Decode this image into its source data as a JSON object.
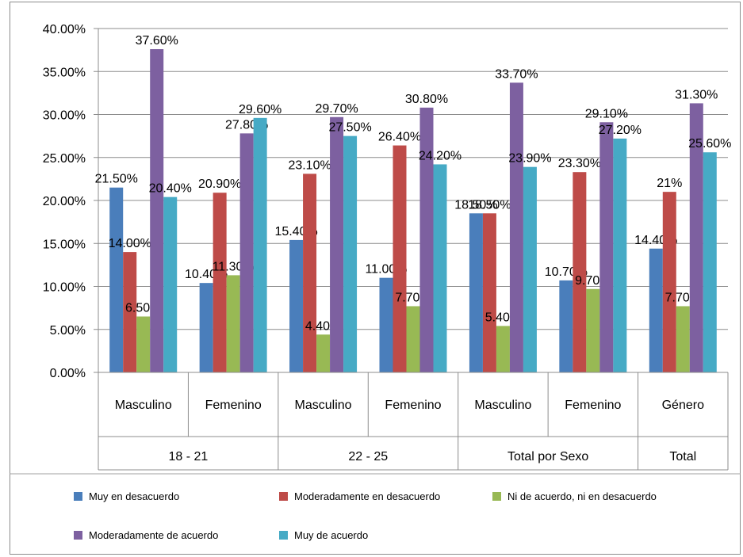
{
  "chart_data": {
    "type": "bar",
    "ylim": [
      0,
      40
    ],
    "y_ticks": [
      "0.00%",
      "5.00%",
      "10.00%",
      "15.00%",
      "20.00%",
      "25.00%",
      "30.00%",
      "35.00%",
      "40.00%"
    ],
    "grid": "horizontal",
    "legend": "bottom",
    "categories": [
      {
        "label": "Masculino",
        "group": "18 - 21"
      },
      {
        "label": "Femenino",
        "group": "18 - 21"
      },
      {
        "label": "Masculino",
        "group": "22 - 25"
      },
      {
        "label": "Femenino",
        "group": "22 - 25"
      },
      {
        "label": "Masculino",
        "group": "Total por Sexo"
      },
      {
        "label": "Femenino",
        "group": "Total por Sexo"
      },
      {
        "label": "Género",
        "group": "Total"
      }
    ],
    "groups": [
      {
        "label": "18 - 21",
        "span": 2
      },
      {
        "label": "22 - 25",
        "span": 2
      },
      {
        "label": "Total por Sexo",
        "span": 2
      },
      {
        "label": "Total",
        "span": 1
      }
    ],
    "series": [
      {
        "name": "Muy en desacuerdo",
        "color": "#4a7ebb",
        "values": [
          21.5,
          10.4,
          15.4,
          11.0,
          18.5,
          10.7,
          14.4
        ],
        "labels": [
          "21.50%",
          "10.40%",
          "15.40%",
          "11.00%",
          "18.50%",
          "10.70%",
          "14.40%"
        ]
      },
      {
        "name": "Moderadamente en desacuerdo",
        "color": "#be4b48",
        "values": [
          14.0,
          20.9,
          23.1,
          26.4,
          18.5,
          23.3,
          21.0
        ],
        "labels": [
          "14.00%",
          "20.90%",
          "23.10%",
          "26.40%",
          "18.50%",
          "23.30%",
          "21%"
        ]
      },
      {
        "name": "Ni de acuerdo, ni en desacuerdo",
        "color": "#98b954",
        "values": [
          6.5,
          11.3,
          4.4,
          7.7,
          5.4,
          9.7,
          7.7
        ],
        "labels": [
          "6.50%",
          "11.30%",
          "4.40%",
          "7.70%",
          "5.40%",
          "9.70%",
          "7.70%"
        ]
      },
      {
        "name": "Moderadamente de acuerdo",
        "color": "#7d60a0",
        "values": [
          37.6,
          27.8,
          29.7,
          30.8,
          33.7,
          29.1,
          31.3
        ],
        "labels": [
          "37.60%",
          "27.80%",
          "29.70%",
          "30.80%",
          "33.70%",
          "29.10%",
          "31.30%"
        ]
      },
      {
        "name": "Muy de acuerdo",
        "color": "#46aac5",
        "values": [
          20.4,
          29.6,
          27.5,
          24.2,
          23.9,
          27.2,
          25.6
        ],
        "labels": [
          "20.40%",
          "29.60%",
          "27.50%",
          "24.20%",
          "23.90%",
          "27.20%",
          "25.60%"
        ]
      }
    ]
  }
}
